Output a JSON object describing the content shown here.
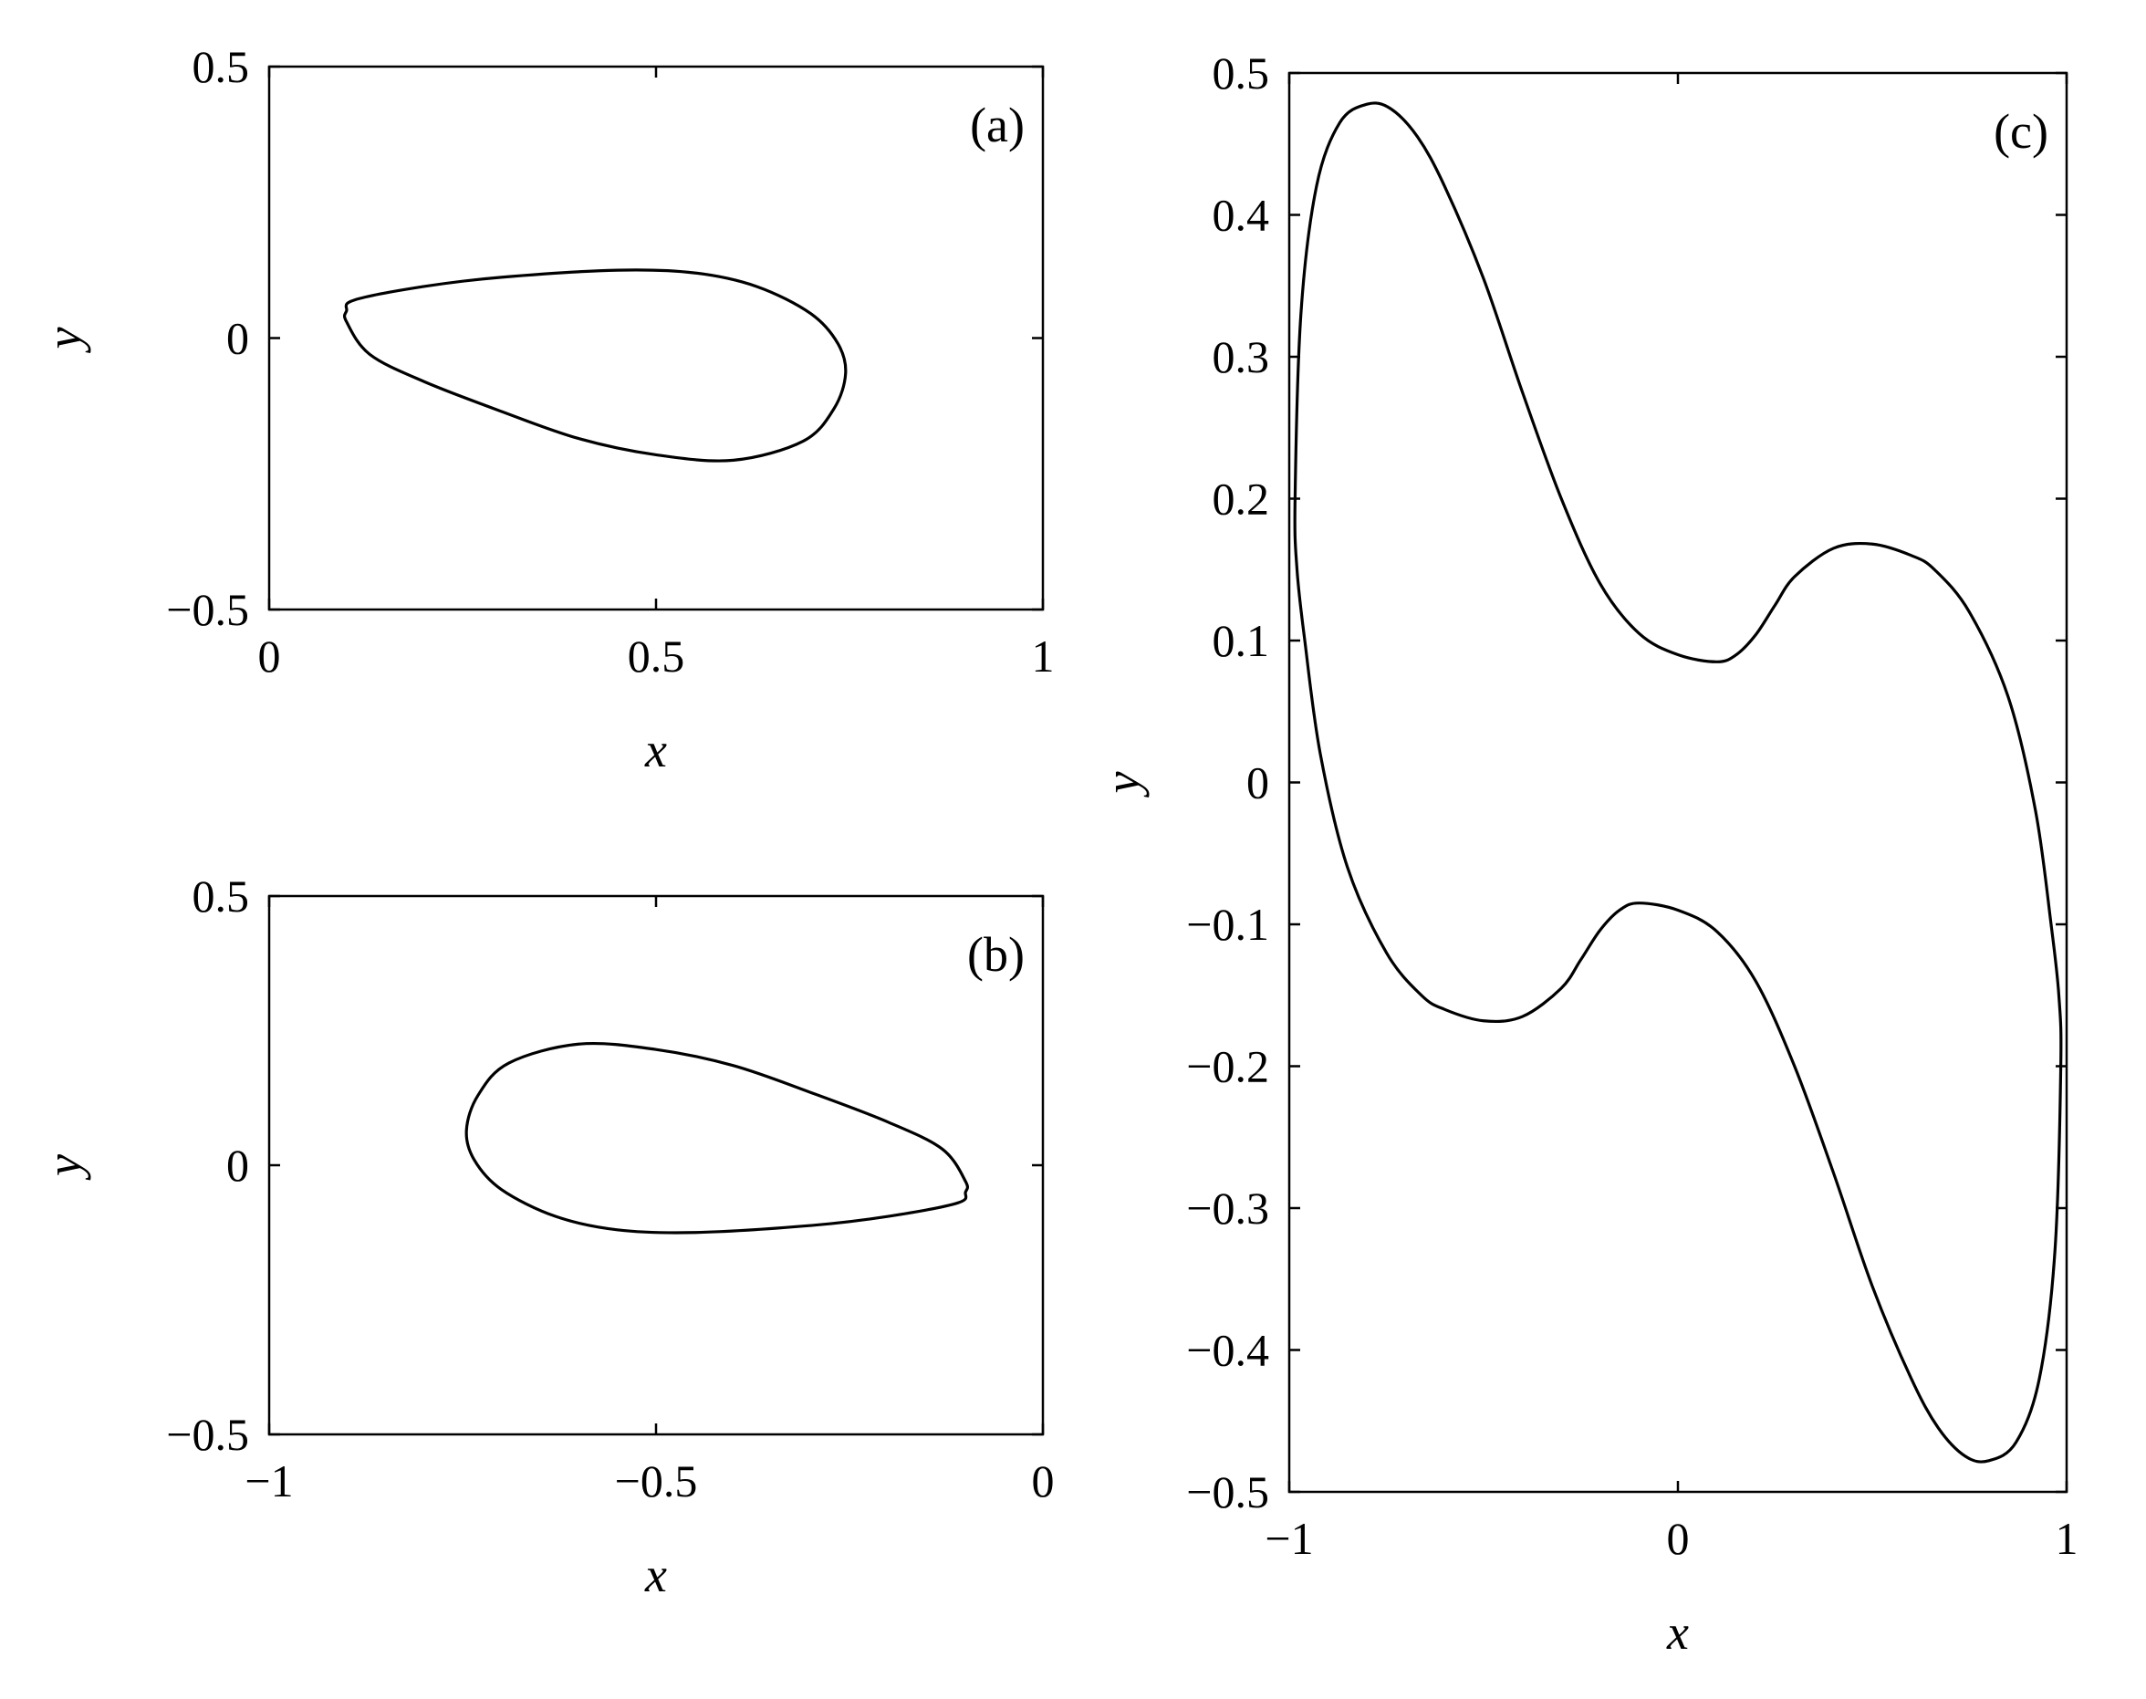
{
  "chart_data": [
    {
      "type": "line",
      "panel_label": "(a)",
      "xlabel": "x",
      "ylabel": "y",
      "xlim": [
        0,
        1
      ],
      "ylim": [
        -0.5,
        0.5
      ],
      "xticks": [
        0,
        0.5,
        1
      ],
      "yticks": [
        -0.5,
        0,
        0.5
      ],
      "xtick_labels": [
        "0",
        "0.5",
        "1"
      ],
      "ytick_labels": [
        "−0.5",
        "0",
        "0.5"
      ],
      "grid": false,
      "series": [
        {
          "closed": true,
          "x": [
            0.1,
            0.11,
            0.2,
            0.3,
            0.45,
            0.55,
            0.63,
            0.7,
            0.735,
            0.745,
            0.73,
            0.69,
            0.6,
            0.5,
            0.4,
            0.3,
            0.2,
            0.13,
            0.1
          ],
          "y": [
            0.05,
            0.07,
            0.095,
            0.112,
            0.125,
            0.12,
            0.095,
            0.045,
            -0.01,
            -0.065,
            -0.13,
            -0.19,
            -0.225,
            -0.215,
            -0.185,
            -0.135,
            -0.08,
            -0.03,
            0.03
          ]
        }
      ]
    },
    {
      "type": "line",
      "panel_label": "(b)",
      "xlabel": "x",
      "ylabel": "y",
      "xlim": [
        -1,
        0
      ],
      "ylim": [
        -0.5,
        0.5
      ],
      "xticks": [
        -1,
        -0.5,
        0
      ],
      "yticks": [
        -0.5,
        0,
        0.5
      ],
      "xtick_labels": [
        "−1",
        "−0.5",
        "0"
      ],
      "ytick_labels": [
        "−0.5",
        "0",
        "0.5"
      ],
      "grid": false,
      "series": [
        {
          "closed": true,
          "x": [
            -0.1,
            -0.11,
            -0.2,
            -0.3,
            -0.45,
            -0.55,
            -0.63,
            -0.7,
            -0.735,
            -0.745,
            -0.73,
            -0.69,
            -0.6,
            -0.5,
            -0.4,
            -0.3,
            -0.2,
            -0.13,
            -0.1
          ],
          "y": [
            -0.05,
            -0.07,
            -0.095,
            -0.112,
            -0.125,
            -0.12,
            -0.095,
            -0.045,
            0.01,
            0.065,
            0.13,
            0.19,
            0.225,
            0.215,
            0.185,
            0.135,
            0.08,
            0.03,
            -0.03
          ]
        }
      ]
    },
    {
      "type": "line",
      "panel_label": "(c)",
      "xlabel": "x",
      "ylabel": "y",
      "xlim": [
        -1,
        1
      ],
      "ylim": [
        -0.5,
        0.5
      ],
      "xticks": [
        -1,
        0,
        1
      ],
      "yticks": [
        -0.5,
        -0.4,
        -0.3,
        -0.2,
        -0.1,
        0,
        0.1,
        0.2,
        0.3,
        0.4,
        0.5
      ],
      "xtick_labels": [
        "−1",
        "0",
        "1"
      ],
      "ytick_labels": [
        "−0.5",
        "−0.4",
        "−0.3",
        "−0.2",
        "−0.1",
        "0",
        "0.1",
        "0.2",
        "0.3",
        "0.4",
        "0.5"
      ],
      "grid": false,
      "series": [
        {
          "closed": true,
          "x": [
            -0.985,
            -0.97,
            -0.93,
            -0.87,
            -0.8,
            -0.74,
            -0.67,
            -0.6,
            -0.5,
            -0.4,
            -0.3,
            -0.2,
            -0.1,
            0,
            0.1,
            0.15,
            0.2,
            0.25,
            0.3,
            0.4,
            0.5,
            0.6,
            0.66,
            0.75,
            0.85,
            0.92,
            0.96,
            0.98,
            0.985,
            0.97,
            0.93,
            0.87,
            0.8,
            0.74,
            0.67,
            0.6,
            0.5,
            0.4,
            0.3,
            0.2,
            0.1,
            0,
            -0.1,
            -0.15,
            -0.2,
            -0.25,
            -0.3,
            -0.4,
            -0.5,
            -0.6,
            -0.66,
            -0.75,
            -0.85,
            -0.92,
            -0.96,
            -0.98,
            -0.985
          ],
          "y": [
            0.2,
            0.33,
            0.42,
            0.465,
            0.478,
            0.475,
            0.455,
            0.42,
            0.355,
            0.275,
            0.2,
            0.14,
            0.105,
            0.09,
            0.085,
            0.09,
            0.104,
            0.125,
            0.145,
            0.165,
            0.168,
            0.16,
            0.15,
            0.12,
            0.06,
            -0.02,
            -0.1,
            -0.15,
            -0.2,
            -0.33,
            -0.42,
            -0.465,
            -0.478,
            -0.475,
            -0.455,
            -0.42,
            -0.355,
            -0.275,
            -0.2,
            -0.14,
            -0.105,
            -0.09,
            -0.085,
            -0.09,
            -0.104,
            -0.125,
            -0.145,
            -0.165,
            -0.168,
            -0.16,
            -0.15,
            -0.12,
            -0.06,
            0.02,
            0.1,
            0.15,
            0.2
          ]
        }
      ]
    }
  ]
}
